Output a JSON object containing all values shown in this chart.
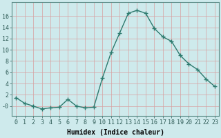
{
  "x": [
    0,
    1,
    2,
    3,
    4,
    5,
    6,
    7,
    8,
    9,
    10,
    11,
    12,
    13,
    14,
    15,
    16,
    17,
    18,
    19,
    20,
    21,
    22,
    23
  ],
  "y": [
    1.5,
    0.5,
    0.0,
    -0.5,
    -0.3,
    -0.2,
    1.2,
    0.0,
    -0.3,
    -0.2,
    5.0,
    9.5,
    13.0,
    16.5,
    17.0,
    16.5,
    13.8,
    12.3,
    11.5,
    9.0,
    7.5,
    6.5,
    4.8,
    3.5
  ],
  "line_color": "#2d7a6e",
  "marker": "+",
  "markersize": 4.0,
  "linewidth": 1.0,
  "bg_color": "#ceeaec",
  "grid_color": "#b8d8da",
  "xlabel": "Humidex (Indice chaleur)",
  "xlabel_fontsize": 7,
  "tick_fontsize": 6,
  "ytick_labels": [
    "-0",
    "2",
    "4",
    "6",
    "8",
    "10",
    "12",
    "14",
    "16"
  ],
  "ytick_vals": [
    0,
    2,
    4,
    6,
    8,
    10,
    12,
    14,
    16
  ],
  "ylim": [
    -1.8,
    18.5
  ],
  "xlim": [
    -0.5,
    23.5
  ]
}
